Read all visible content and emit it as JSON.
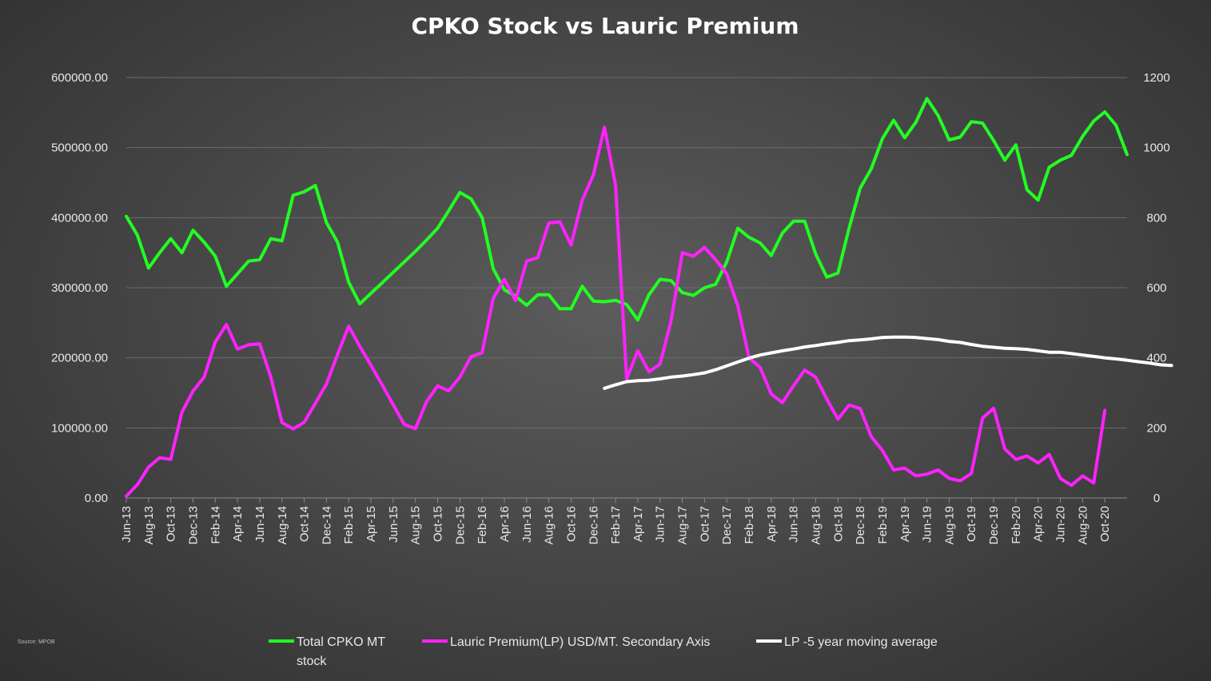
{
  "chart_data": {
    "type": "line",
    "title": "CPKO Stock vs Lauric Premium",
    "source": "Source: MPOB",
    "y_left": {
      "ylim": [
        0,
        600000
      ],
      "ticks": [
        0,
        100000,
        200000,
        300000,
        400000,
        500000,
        600000
      ],
      "tick_labels": [
        "0.00",
        "100000.00",
        "200000.00",
        "300000.00",
        "400000.00",
        "500000.00",
        "600000.00"
      ]
    },
    "y_right": {
      "ylim": [
        0,
        1200
      ],
      "ticks": [
        0,
        200,
        400,
        600,
        800,
        1000,
        1200
      ],
      "tick_labels": [
        "0",
        "200",
        "400",
        "600",
        "800",
        "1000",
        "1200"
      ]
    },
    "x_tick_labels": [
      "Jun-13",
      "Aug-13",
      "Oct-13",
      "Dec-13",
      "Feb-14",
      "Apr-14",
      "Jun-14",
      "Aug-14",
      "Oct-14",
      "Dec-14",
      "Feb-15",
      "Apr-15",
      "Jun-15",
      "Aug-15",
      "Oct-15",
      "Dec-15",
      "Feb-16",
      "Apr-16",
      "Jun-16",
      "Aug-16",
      "Oct-16",
      "Dec-16",
      "Feb-17",
      "Apr-17",
      "Jun-17",
      "Aug-17",
      "Oct-17",
      "Dec-17",
      "Feb-18",
      "Apr-18",
      "Jun-18",
      "Aug-18",
      "Oct-18",
      "Dec-18",
      "Feb-19",
      "Apr-19",
      "Jun-19",
      "Aug-19",
      "Oct-19",
      "Dec-19",
      "Feb-20",
      "Apr-20",
      "Jun-20",
      "Aug-20",
      "Oct-20"
    ],
    "series": [
      {
        "name": "Total CPKO MT stock",
        "legend_label": "Total CPKO MT",
        "legend_label_line2": "stock",
        "axis": "left",
        "color": "#22ff22",
        "start_index": 0,
        "values": [
          402000,
          375000,
          328000,
          350000,
          370000,
          350000,
          382000,
          365000,
          345000,
          302000,
          320000,
          338000,
          340000,
          370000,
          367000,
          432000,
          437000,
          446000,
          393000,
          365000,
          308000,
          277000,
          292000,
          307000,
          322000,
          337000,
          352000,
          368000,
          385000,
          410000,
          436000,
          427000,
          400000,
          327000,
          297000,
          288000,
          275000,
          290000,
          290000,
          270000,
          270000,
          302000,
          281000,
          280000,
          282000,
          276000,
          254000,
          290000,
          312000,
          310000,
          293000,
          289000,
          300000,
          305000,
          337000,
          385000,
          372000,
          364000,
          346000,
          378000,
          395000,
          395000,
          348000,
          315000,
          321000,
          385000,
          442000,
          470000,
          513000,
          539000,
          514000,
          536000,
          570000,
          546000,
          511000,
          515000,
          537000,
          535000,
          510000,
          482000,
          504000,
          440000,
          425000,
          472000,
          482000,
          489000,
          516000,
          538000,
          551000,
          532000,
          490000
        ]
      },
      {
        "name": "Lauric Premium(LP) USD/MT. Secondary Axis",
        "legend_label": "Lauric Premium(LP) USD/MT. Secondary Axis",
        "axis": "right",
        "color": "#ff22ff",
        "start_index": 0,
        "values": [
          5,
          38,
          88,
          115,
          110,
          245,
          305,
          345,
          445,
          495,
          425,
          437,
          440,
          345,
          215,
          197,
          216,
          270,
          325,
          410,
          490,
          433,
          379,
          323,
          266,
          210,
          198,
          275,
          320,
          306,
          345,
          403,
          415,
          570,
          624,
          564,
          676,
          686,
          785,
          788,
          722,
          850,
          922,
          1058,
          892,
          340,
          420,
          360,
          382,
          506,
          700,
          690,
          715,
          680,
          640,
          548,
          400,
          373,
          297,
          272,
          320,
          365,
          345,
          282,
          225,
          265,
          255,
          175,
          135,
          80,
          85,
          63,
          68,
          80,
          56,
          49,
          70,
          228,
          256,
          140,
          110,
          120,
          100,
          124,
          56,
          36,
          63,
          43,
          250
        ]
      },
      {
        "name": "LP -5 year moving average",
        "legend_label": "LP -5 year moving average",
        "axis": "right",
        "color": "#ffffff",
        "start_index": 43,
        "values": [
          313,
          323,
          332,
          335,
          336,
          340,
          345,
          348,
          352,
          357,
          366,
          377,
          388,
          399,
          408,
          414,
          420,
          425,
          431,
          435,
          440,
          444,
          449,
          451,
          454,
          458,
          459,
          459,
          458,
          455,
          452,
          447,
          444,
          438,
          433,
          430,
          427,
          426,
          424,
          420,
          416,
          416,
          412,
          408,
          404,
          400,
          397,
          393,
          389,
          385,
          380,
          378
        ]
      }
    ]
  }
}
